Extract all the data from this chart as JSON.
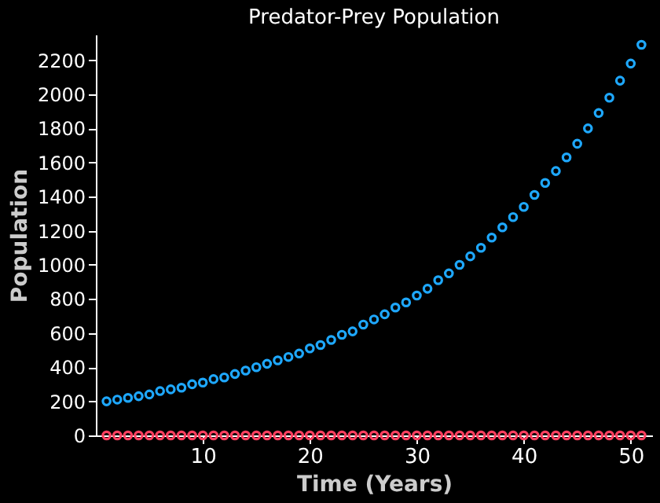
{
  "chart_data": {
    "type": "scatter",
    "title": "Predator-Prey Population",
    "xlabel": "Time (Years)",
    "ylabel": "Population",
    "x": [
      1,
      2,
      3,
      4,
      5,
      6,
      7,
      8,
      9,
      10,
      11,
      12,
      13,
      14,
      15,
      16,
      17,
      18,
      19,
      20,
      21,
      22,
      23,
      24,
      25,
      26,
      27,
      28,
      29,
      30,
      31,
      32,
      33,
      34,
      35,
      36,
      37,
      38,
      39,
      40,
      41,
      42,
      43,
      44,
      45,
      46,
      47,
      48,
      49,
      50,
      51
    ],
    "series": [
      {
        "color": "#1ea8ff",
        "values": [
          200,
          210,
          220,
          230,
          240,
          260,
          270,
          280,
          300,
          310,
          330,
          340,
          360,
          380,
          400,
          420,
          440,
          460,
          480,
          510,
          530,
          560,
          590,
          610,
          650,
          680,
          710,
          750,
          780,
          820,
          860,
          910,
          950,
          1000,
          1050,
          1100,
          1160,
          1220,
          1280,
          1340,
          1410,
          1480,
          1550,
          1630,
          1710,
          1800,
          1890,
          1980,
          2080,
          2180,
          2290
        ]
      },
      {
        "color": "#ff4060",
        "values": [
          0,
          0,
          0,
          0,
          0,
          0,
          0,
          0,
          0,
          0,
          0,
          0,
          0,
          0,
          0,
          0,
          0,
          0,
          0,
          0,
          0,
          0,
          0,
          0,
          0,
          0,
          0,
          0,
          0,
          0,
          0,
          0,
          0,
          0,
          0,
          0,
          0,
          0,
          0,
          0,
          0,
          0,
          0,
          0,
          0,
          0,
          0,
          0,
          0,
          0,
          0
        ]
      }
    ],
    "xlim": [
      0,
      52
    ],
    "xticks": [
      10,
      20,
      30,
      40,
      50
    ],
    "ylim": [
      0,
      2350
    ],
    "yticks": [
      0,
      200,
      400,
      600,
      800,
      1000,
      1200,
      1400,
      1600,
      1800,
      2000,
      2200
    ],
    "marker": "circle",
    "grid": false,
    "legend": false
  }
}
